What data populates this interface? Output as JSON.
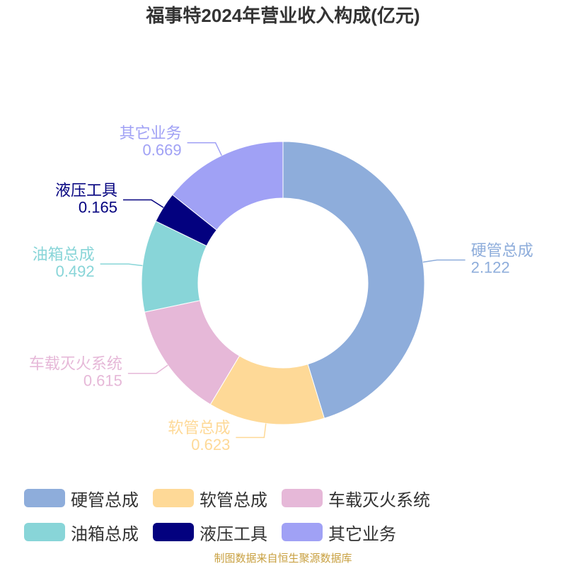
{
  "chart_data": {
    "type": "donut",
    "title": "福事特2024年营业收入构成(亿元)",
    "categories": [
      "硬管总成",
      "软管总成",
      "车载灭火系统",
      "油箱总成",
      "液压工具",
      "其它业务"
    ],
    "values": [
      2.122,
      0.623,
      0.615,
      0.492,
      0.165,
      0.669
    ],
    "colors": [
      "#8eaddb",
      "#fed997",
      "#e6b8d8",
      "#88d5d8",
      "#03017f",
      "#a0a1f5"
    ],
    "legend": "bottom",
    "source": "制图数据来自恒生聚源数据库"
  }
}
